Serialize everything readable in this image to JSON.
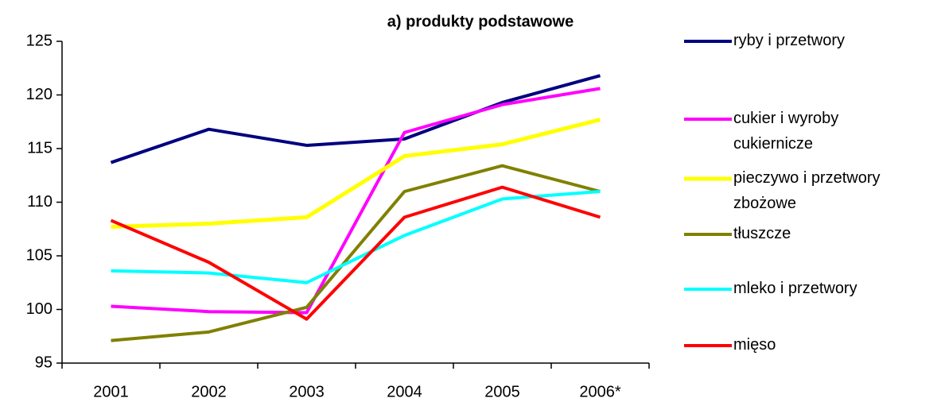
{
  "chart_data": {
    "type": "line",
    "title": "a) produkty podstawowe",
    "categories": [
      "2001",
      "2002",
      "2003",
      "2004",
      "2005",
      "2006*"
    ],
    "series": [
      {
        "name": "ryby i przetwory",
        "color": "#000080",
        "values": [
          113.7,
          116.8,
          115.3,
          115.9,
          119.3,
          121.8
        ]
      },
      {
        "name": "cukier i wyroby cukiernicze",
        "color": "#ff00ff",
        "values": [
          100.3,
          99.8,
          99.7,
          116.5,
          119.1,
          120.6
        ]
      },
      {
        "name": "pieczywo i przetwory zbożowe",
        "color": "#ffff00",
        "values": [
          107.7,
          108.0,
          108.6,
          114.3,
          115.4,
          117.7
        ]
      },
      {
        "name": "tłuszcze",
        "color": "#808000",
        "values": [
          97.1,
          97.9,
          100.2,
          111.0,
          113.4,
          111.0
        ]
      },
      {
        "name": "mleko i przetwory",
        "color": "#00ffff",
        "values": [
          103.6,
          103.4,
          102.5,
          106.9,
          110.3,
          111.0
        ]
      },
      {
        "name": "mięso",
        "color": "#ff0000",
        "values": [
          108.3,
          104.4,
          99.1,
          108.6,
          111.4,
          108.6
        ]
      }
    ],
    "ylim": [
      95,
      125
    ],
    "yticks": [
      95,
      100,
      105,
      110,
      115,
      120,
      125
    ]
  }
}
